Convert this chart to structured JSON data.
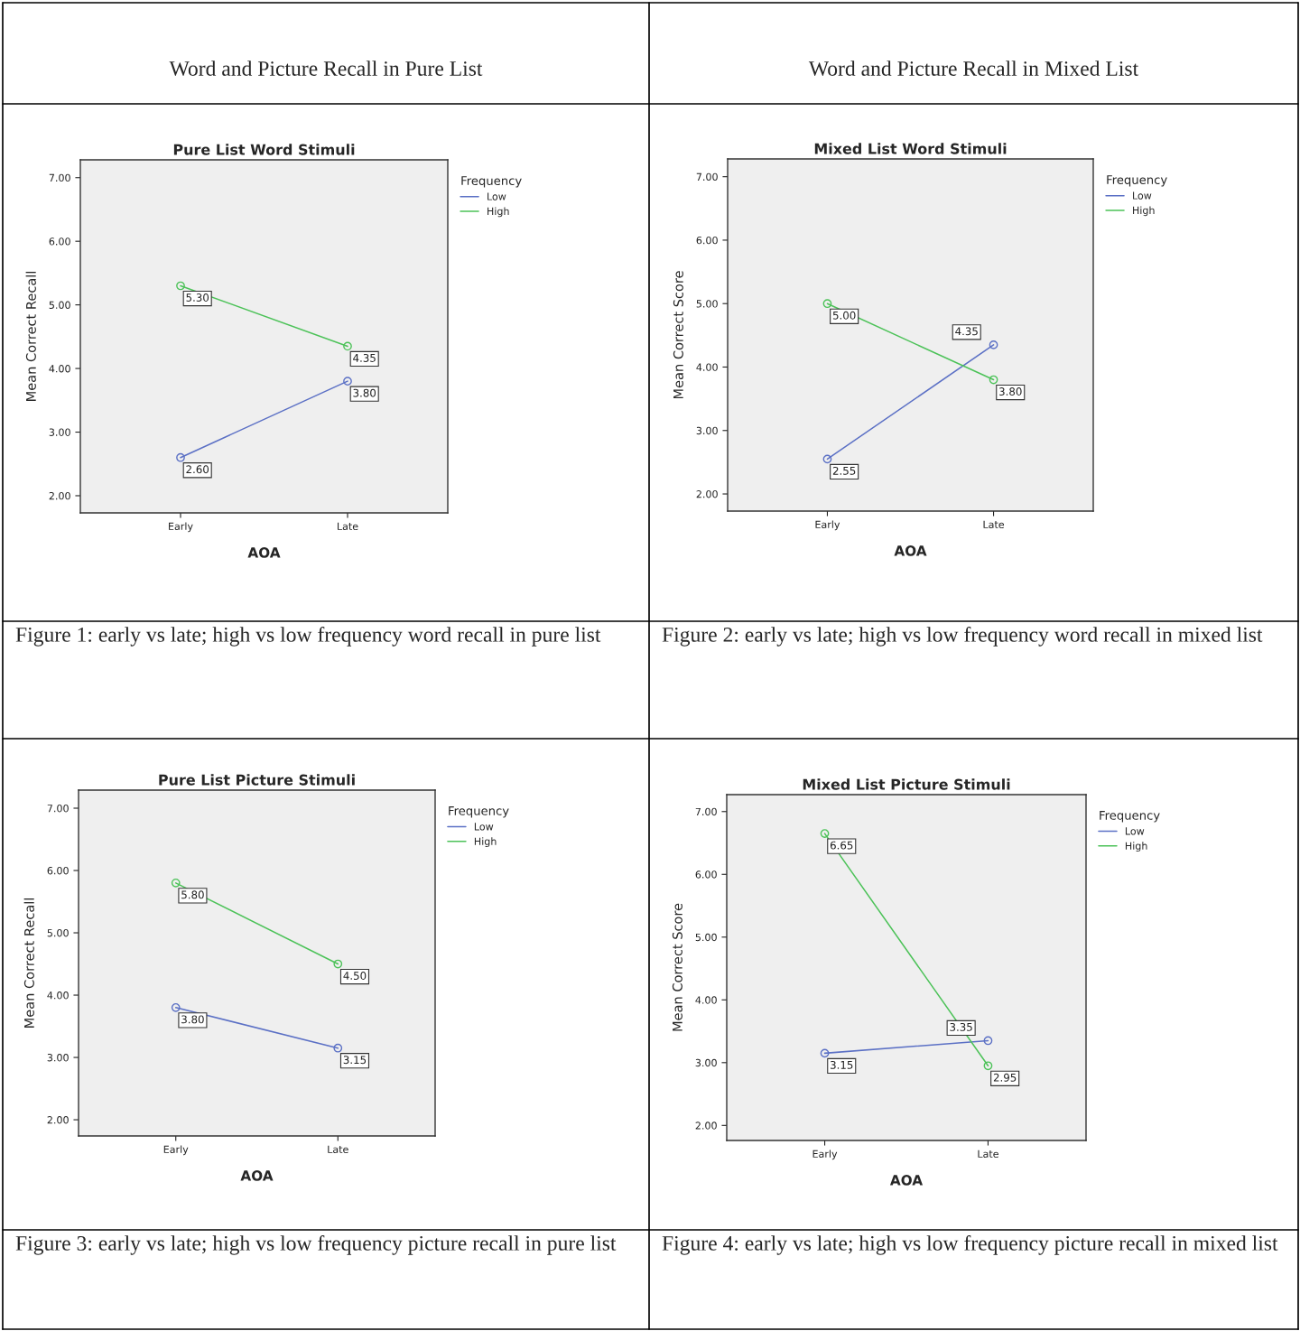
{
  "chart_data": [
    {
      "type": "line",
      "title": "Pure List Word Stimuli",
      "xlabel": "AOA",
      "ylabel": "Mean Correct Recall",
      "legend_title": "Frequency",
      "legend": "right",
      "marker": "circle",
      "grid": false,
      "annotations": [
        "Word and Picture Recall in Pure List",
        "Figure 1: early vs late; high vs low frequency word recall in pure list"
      ],
      "categories": [
        "Early",
        "Late"
      ],
      "series": [
        {
          "name": "Low",
          "color": "#5b70c5",
          "values": [
            2.6,
            3.8
          ],
          "value_labels": [
            "2.60",
            "3.80"
          ]
        },
        {
          "name": "High",
          "color": "#4cc258",
          "values": [
            5.3,
            4.35
          ],
          "value_labels": [
            "5.30",
            "4.35"
          ]
        }
      ],
      "ylim": [
        1.73,
        7.28
      ],
      "yticks": [
        {
          "value": 2,
          "label": "2.00"
        },
        {
          "value": 3,
          "label": "3.00"
        },
        {
          "value": 4,
          "label": "4.00"
        },
        {
          "value": 5,
          "label": "5.00"
        },
        {
          "value": 6,
          "label": "6.00"
        },
        {
          "value": 7,
          "label": "7.00"
        }
      ]
    },
    {
      "type": "line",
      "title": "Mixed List Word Stimuli",
      "xlabel": "AOA",
      "ylabel": "Mean Correct Score",
      "legend_title": "Frequency",
      "legend": "right",
      "marker": "circle",
      "grid": false,
      "annotations": [
        "Word and Picture Recall in Mixed List",
        "Figure 2: early vs late; high vs low frequency word recall in mixed list"
      ],
      "categories": [
        "Early",
        "Late"
      ],
      "series": [
        {
          "name": "Low",
          "color": "#5b70c5",
          "values": [
            2.55,
            4.35
          ],
          "value_labels": [
            "2.55",
            "4.35"
          ]
        },
        {
          "name": "High",
          "color": "#4cc258",
          "values": [
            5.0,
            3.8
          ],
          "value_labels": [
            "5.00",
            "3.80"
          ]
        }
      ],
      "ylim": [
        1.73,
        7.28
      ],
      "yticks": [
        {
          "value": 2,
          "label": "2.00"
        },
        {
          "value": 3,
          "label": "3.00"
        },
        {
          "value": 4,
          "label": "4.00"
        },
        {
          "value": 5,
          "label": "5.00"
        },
        {
          "value": 6,
          "label": "6.00"
        },
        {
          "value": 7,
          "label": "7.00"
        }
      ]
    },
    {
      "type": "line",
      "title": "Pure List Picture Stimuli",
      "xlabel": "AOA",
      "ylabel": "Mean Correct Recall",
      "legend_title": "Frequency",
      "legend": "right",
      "marker": "circle",
      "grid": false,
      "annotations": [
        "Figure 3: early vs late; high vs low frequency picture recall in pure list"
      ],
      "categories": [
        "Early",
        "Late"
      ],
      "series": [
        {
          "name": "Low",
          "color": "#5b70c5",
          "values": [
            3.8,
            3.15
          ],
          "value_labels": [
            "3.80",
            "3.15"
          ]
        },
        {
          "name": "High",
          "color": "#4cc258",
          "values": [
            5.8,
            4.5
          ],
          "value_labels": [
            "5.80",
            "4.50"
          ]
        }
      ],
      "ylim": [
        1.74,
        7.29
      ],
      "yticks": [
        {
          "value": 2,
          "label": "2.00"
        },
        {
          "value": 3,
          "label": "3.00"
        },
        {
          "value": 4,
          "label": "4.00"
        },
        {
          "value": 5,
          "label": "5.00"
        },
        {
          "value": 6,
          "label": "6.00"
        },
        {
          "value": 7,
          "label": "7.00"
        }
      ]
    },
    {
      "type": "line",
      "title": "Mixed List Picture Stimuli",
      "xlabel": "AOA",
      "ylabel": "Mean Correct Score",
      "legend_title": "Frequency",
      "legend": "right",
      "marker": "circle",
      "grid": false,
      "annotations": [
        "Figure 4: early vs late; high vs low frequency picture recall in mixed list"
      ],
      "categories": [
        "Early",
        "Late"
      ],
      "series": [
        {
          "name": "Low",
          "color": "#5b70c5",
          "values": [
            3.15,
            3.35
          ],
          "value_labels": [
            "3.15",
            "3.35"
          ]
        },
        {
          "name": "High",
          "color": "#4cc258",
          "values": [
            6.65,
            2.95
          ],
          "value_labels": [
            "6.65",
            "2.95"
          ]
        }
      ],
      "ylim": [
        1.76,
        7.27
      ],
      "yticks": [
        {
          "value": 2,
          "label": "2.00"
        },
        {
          "value": 3,
          "label": "3.00"
        },
        {
          "value": 4,
          "label": "4.00"
        },
        {
          "value": 5,
          "label": "5.00"
        },
        {
          "value": 6,
          "label": "6.00"
        },
        {
          "value": 7,
          "label": "7.00"
        }
      ]
    }
  ]
}
